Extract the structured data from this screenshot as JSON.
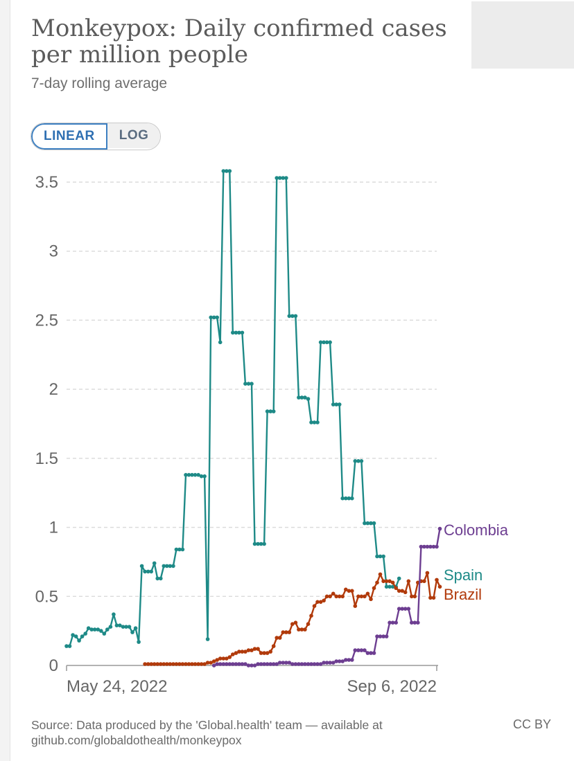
{
  "header": {
    "title": "Monkeypox: Daily confirmed cases per million people",
    "subtitle": "7-day rolling average"
  },
  "controls": {
    "linear_label": "LINEAR",
    "log_label": "LOG",
    "selected": "LINEAR"
  },
  "footer": {
    "source": "Source: Data produced by the 'Global.health' team — available at github.com/globaldothealth/monkeypox",
    "license": "CC BY"
  },
  "colors": {
    "spain": "#1e8a87",
    "brazil": "#b13a0b",
    "colombia": "#6d3e91",
    "grid": "#dcdcdc",
    "axis_text": "#666666"
  },
  "chart_data": {
    "type": "line",
    "x_start": "2022-05-14",
    "x_end": "2022-09-09",
    "x_tick_labels": [
      "May 24, 2022",
      "Sep 6, 2022"
    ],
    "x_tick_dates": [
      "2022-05-24",
      "2022-09-06"
    ],
    "ylim": [
      0,
      3.5
    ],
    "y_ticks": [
      0,
      0.5,
      1,
      1.5,
      2,
      2.5,
      3,
      3.5
    ],
    "y_tick_labels": [
      "0",
      "0.5",
      "1",
      "1.5",
      "2",
      "2.5",
      "3",
      "3.5"
    ],
    "grid": "horizontal dashed",
    "legend": "direct labels at line ends",
    "series": [
      {
        "name": "Spain",
        "color_key": "spain",
        "start": "2022-05-14",
        "values": [
          0.14,
          0.14,
          0.22,
          0.21,
          0.18,
          0.21,
          0.23,
          0.27,
          0.26,
          0.26,
          0.26,
          0.25,
          0.23,
          0.26,
          0.28,
          0.37,
          0.29,
          0.29,
          0.28,
          0.28,
          0.28,
          0.24,
          0.27,
          0.17,
          0.72,
          0.68,
          0.68,
          0.68,
          0.74,
          0.63,
          0.63,
          0.72,
          0.72,
          0.72,
          0.72,
          0.84,
          0.84,
          0.84,
          1.38,
          1.38,
          1.38,
          1.38,
          1.38,
          1.37,
          1.37,
          0.19,
          2.52,
          2.52,
          2.52,
          2.34,
          3.58,
          3.58,
          3.58,
          2.41,
          2.41,
          2.41,
          2.41,
          2.04,
          2.04,
          2.04,
          0.88,
          0.88,
          0.88,
          0.88,
          1.84,
          1.84,
          1.84,
          3.53,
          3.53,
          3.53,
          3.53,
          2.53,
          2.53,
          2.53,
          1.94,
          1.94,
          1.94,
          1.93,
          1.76,
          1.76,
          1.76,
          2.34,
          2.34,
          2.34,
          2.34,
          1.89,
          1.89,
          1.89,
          1.21,
          1.21,
          1.21,
          1.21,
          1.48,
          1.48,
          1.48,
          1.03,
          1.03,
          1.03,
          1.03,
          0.79,
          0.79,
          0.79,
          0.57,
          0.57,
          0.57,
          0.57,
          0.63
        ]
      },
      {
        "name": "Brazil",
        "color_key": "brazil",
        "start": "2022-06-08",
        "values": [
          0.01,
          0.01,
          0.01,
          0.01,
          0.01,
          0.01,
          0.01,
          0.01,
          0.01,
          0.01,
          0.01,
          0.01,
          0.01,
          0.01,
          0.01,
          0.01,
          0.01,
          0.01,
          0.01,
          0.01,
          0.02,
          0.02,
          0.03,
          0.04,
          0.05,
          0.05,
          0.05,
          0.06,
          0.08,
          0.09,
          0.1,
          0.1,
          0.1,
          0.11,
          0.11,
          0.12,
          0.12,
          0.09,
          0.09,
          0.09,
          0.1,
          0.14,
          0.2,
          0.2,
          0.24,
          0.24,
          0.24,
          0.3,
          0.31,
          0.26,
          0.26,
          0.26,
          0.3,
          0.36,
          0.43,
          0.46,
          0.46,
          0.47,
          0.5,
          0.5,
          0.52,
          0.5,
          0.5,
          0.5,
          0.55,
          0.54,
          0.54,
          0.43,
          0.5,
          0.5,
          0.5,
          0.52,
          0.48,
          0.56,
          0.6,
          0.66,
          0.61,
          0.61,
          0.61,
          0.6,
          0.56,
          0.54,
          0.54,
          0.53,
          0.61,
          0.5,
          0.5,
          0.6,
          0.61,
          0.61,
          0.67,
          0.49,
          0.49,
          0.62,
          0.57
        ]
      },
      {
        "name": "Colombia",
        "color_key": "colombia",
        "start": "2022-06-30",
        "values": [
          0.0,
          0.01,
          0.01,
          0.01,
          0.01,
          0.01,
          0.01,
          0.01,
          0.01,
          0.01,
          0.01,
          0.0,
          0.0,
          0.0,
          0.01,
          0.01,
          0.01,
          0.01,
          0.01,
          0.01,
          0.01,
          0.02,
          0.02,
          0.02,
          0.02,
          0.01,
          0.01,
          0.01,
          0.01,
          0.01,
          0.01,
          0.01,
          0.01,
          0.01,
          0.01,
          0.02,
          0.02,
          0.02,
          0.02,
          0.03,
          0.03,
          0.03,
          0.04,
          0.04,
          0.04,
          0.11,
          0.11,
          0.11,
          0.11,
          0.09,
          0.09,
          0.09,
          0.21,
          0.21,
          0.21,
          0.21,
          0.31,
          0.31,
          0.31,
          0.41,
          0.41,
          0.41,
          0.41,
          0.31,
          0.31,
          0.31,
          0.86,
          0.86,
          0.86,
          0.86,
          0.86,
          0.86,
          0.99
        ]
      }
    ]
  }
}
